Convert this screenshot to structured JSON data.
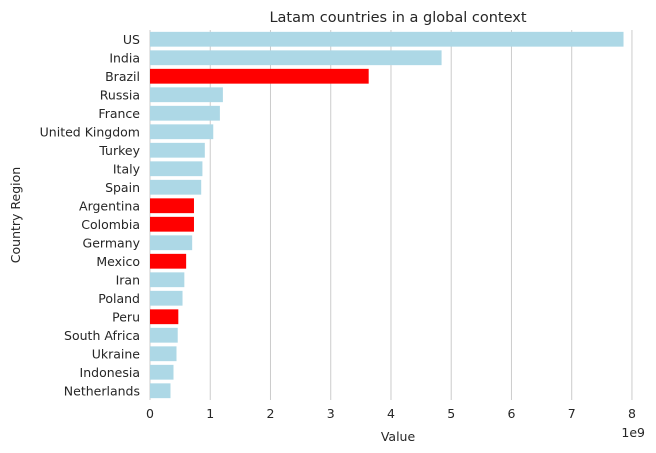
{
  "chart_data": {
    "type": "bar",
    "orientation": "horizontal",
    "title": "Latam countries in a global context",
    "xlabel": "Value",
    "ylabel": "Country Region",
    "offset_text": "1e9",
    "x_scale_multiplier": 1000000000,
    "xlim": [
      0,
      8.2
    ],
    "x_ticks": [
      0,
      1,
      2,
      3,
      4,
      5,
      6,
      7,
      8
    ],
    "grid": "vertical",
    "categories": [
      "US",
      "India",
      "Brazil",
      "Russia",
      "France",
      "United Kingdom",
      "Turkey",
      "Italy",
      "Spain",
      "Argentina",
      "Colombia",
      "Germany",
      "Mexico",
      "Iran",
      "Poland",
      "Peru",
      "South Africa",
      "Ukraine",
      "Indonesia",
      "Netherlands"
    ],
    "values": [
      7.86,
      4.84,
      3.63,
      1.21,
      1.16,
      1.05,
      0.91,
      0.87,
      0.85,
      0.73,
      0.73,
      0.7,
      0.6,
      0.57,
      0.54,
      0.47,
      0.46,
      0.44,
      0.39,
      0.34
    ],
    "highlight": [
      false,
      false,
      true,
      false,
      false,
      false,
      false,
      false,
      false,
      true,
      true,
      false,
      true,
      false,
      false,
      true,
      false,
      false,
      false,
      false
    ],
    "colors": {
      "default": "#add8e6",
      "highlight": "#ff0000"
    }
  }
}
